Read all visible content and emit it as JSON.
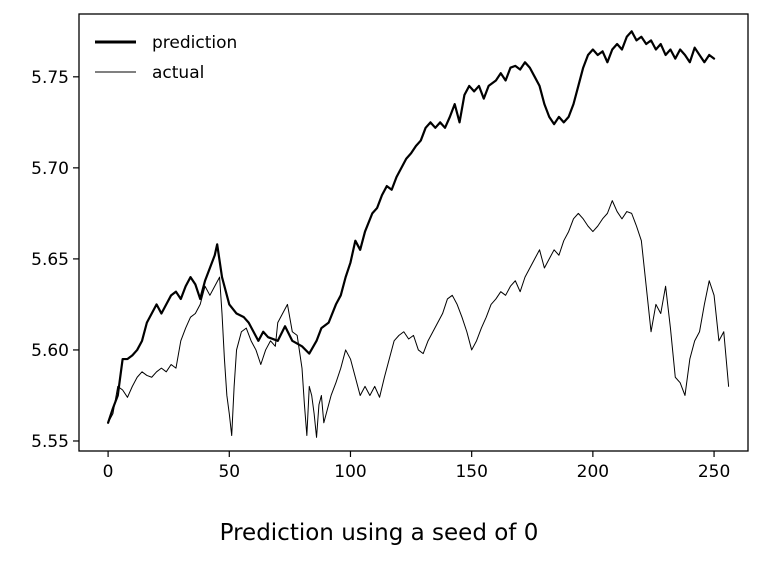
{
  "caption": "Prediction using a seed of 0",
  "chart_data": {
    "type": "line",
    "title": "",
    "xlabel": "",
    "ylabel": "",
    "xlim": [
      -12,
      264
    ],
    "ylim": [
      5.5445,
      5.7845
    ],
    "x_ticks": [
      0,
      50,
      100,
      150,
      200,
      250
    ],
    "y_ticks": [
      5.55,
      5.6,
      5.65,
      5.7,
      5.75
    ],
    "y_tick_labels": [
      "5.55",
      "5.60",
      "5.65",
      "5.70",
      "5.75"
    ],
    "grid": false,
    "legend": "top-left",
    "series": [
      {
        "name": "prediction",
        "color": "#000000",
        "line_width": 2.2,
        "points": [
          [
            0,
            5.56
          ],
          [
            2,
            5.568
          ],
          [
            4,
            5.575
          ],
          [
            6,
            5.595
          ],
          [
            8,
            5.595
          ],
          [
            10,
            5.597
          ],
          [
            12,
            5.6
          ],
          [
            14,
            5.605
          ],
          [
            16,
            5.615
          ],
          [
            18,
            5.62
          ],
          [
            20,
            5.625
          ],
          [
            22,
            5.62
          ],
          [
            24,
            5.625
          ],
          [
            26,
            5.63
          ],
          [
            28,
            5.632
          ],
          [
            30,
            5.628
          ],
          [
            32,
            5.635
          ],
          [
            34,
            5.64
          ],
          [
            36,
            5.636
          ],
          [
            38,
            5.628
          ],
          [
            40,
            5.638
          ],
          [
            42,
            5.645
          ],
          [
            44,
            5.652
          ],
          [
            45,
            5.658
          ],
          [
            47,
            5.64
          ],
          [
            50,
            5.625
          ],
          [
            53,
            5.62
          ],
          [
            56,
            5.618
          ],
          [
            58,
            5.615
          ],
          [
            60,
            5.61
          ],
          [
            62,
            5.605
          ],
          [
            64,
            5.61
          ],
          [
            66,
            5.607
          ],
          [
            70,
            5.605
          ],
          [
            73,
            5.613
          ],
          [
            76,
            5.605
          ],
          [
            80,
            5.602
          ],
          [
            83,
            5.598
          ],
          [
            86,
            5.605
          ],
          [
            88,
            5.612
          ],
          [
            91,
            5.615
          ],
          [
            94,
            5.625
          ],
          [
            96,
            5.63
          ],
          [
            98,
            5.64
          ],
          [
            100,
            5.648
          ],
          [
            102,
            5.66
          ],
          [
            104,
            5.655
          ],
          [
            106,
            5.665
          ],
          [
            109,
            5.675
          ],
          [
            111,
            5.678
          ],
          [
            113,
            5.685
          ],
          [
            115,
            5.69
          ],
          [
            117,
            5.688
          ],
          [
            119,
            5.695
          ],
          [
            121,
            5.7
          ],
          [
            123,
            5.705
          ],
          [
            125,
            5.708
          ],
          [
            127,
            5.712
          ],
          [
            129,
            5.715
          ],
          [
            131,
            5.722
          ],
          [
            133,
            5.725
          ],
          [
            135,
            5.722
          ],
          [
            137,
            5.725
          ],
          [
            139,
            5.722
          ],
          [
            141,
            5.728
          ],
          [
            143,
            5.735
          ],
          [
            145,
            5.725
          ],
          [
            147,
            5.74
          ],
          [
            149,
            5.745
          ],
          [
            151,
            5.742
          ],
          [
            153,
            5.745
          ],
          [
            155,
            5.738
          ],
          [
            157,
            5.745
          ],
          [
            160,
            5.748
          ],
          [
            162,
            5.752
          ],
          [
            164,
            5.748
          ],
          [
            166,
            5.755
          ],
          [
            168,
            5.756
          ],
          [
            170,
            5.754
          ],
          [
            172,
            5.758
          ],
          [
            174,
            5.755
          ],
          [
            176,
            5.75
          ],
          [
            178,
            5.745
          ],
          [
            180,
            5.735
          ],
          [
            182,
            5.728
          ],
          [
            184,
            5.724
          ],
          [
            186,
            5.728
          ],
          [
            188,
            5.725
          ],
          [
            190,
            5.728
          ],
          [
            192,
            5.735
          ],
          [
            194,
            5.745
          ],
          [
            196,
            5.755
          ],
          [
            198,
            5.762
          ],
          [
            200,
            5.765
          ],
          [
            202,
            5.762
          ],
          [
            204,
            5.764
          ],
          [
            206,
            5.758
          ],
          [
            208,
            5.765
          ],
          [
            210,
            5.768
          ],
          [
            212,
            5.765
          ],
          [
            214,
            5.772
          ],
          [
            216,
            5.775
          ],
          [
            218,
            5.77
          ],
          [
            220,
            5.772
          ],
          [
            222,
            5.768
          ],
          [
            224,
            5.77
          ],
          [
            226,
            5.765
          ],
          [
            228,
            5.768
          ],
          [
            230,
            5.762
          ],
          [
            232,
            5.765
          ],
          [
            234,
            5.76
          ],
          [
            236,
            5.765
          ],
          [
            238,
            5.762
          ],
          [
            240,
            5.758
          ],
          [
            242,
            5.766
          ],
          [
            244,
            5.762
          ],
          [
            246,
            5.758
          ],
          [
            248,
            5.762
          ],
          [
            250,
            5.76
          ]
        ]
      },
      {
        "name": "actual",
        "color": "#000000",
        "line_width": 1.0,
        "points": [
          [
            0,
            5.56
          ],
          [
            2,
            5.565
          ],
          [
            4,
            5.58
          ],
          [
            6,
            5.578
          ],
          [
            8,
            5.574
          ],
          [
            10,
            5.58
          ],
          [
            12,
            5.585
          ],
          [
            14,
            5.588
          ],
          [
            16,
            5.586
          ],
          [
            18,
            5.585
          ],
          [
            20,
            5.588
          ],
          [
            22,
            5.59
          ],
          [
            24,
            5.588
          ],
          [
            26,
            5.592
          ],
          [
            28,
            5.59
          ],
          [
            30,
            5.605
          ],
          [
            32,
            5.612
          ],
          [
            34,
            5.618
          ],
          [
            36,
            5.62
          ],
          [
            38,
            5.625
          ],
          [
            40,
            5.635
          ],
          [
            42,
            5.63
          ],
          [
            44,
            5.635
          ],
          [
            46,
            5.64
          ],
          [
            47,
            5.62
          ],
          [
            48,
            5.595
          ],
          [
            49,
            5.575
          ],
          [
            50,
            5.565
          ],
          [
            51,
            5.553
          ],
          [
            52,
            5.58
          ],
          [
            53,
            5.6
          ],
          [
            55,
            5.61
          ],
          [
            57,
            5.612
          ],
          [
            59,
            5.605
          ],
          [
            61,
            5.6
          ],
          [
            63,
            5.592
          ],
          [
            65,
            5.6
          ],
          [
            67,
            5.605
          ],
          [
            69,
            5.602
          ],
          [
            70,
            5.615
          ],
          [
            72,
            5.62
          ],
          [
            74,
            5.625
          ],
          [
            76,
            5.61
          ],
          [
            78,
            5.608
          ],
          [
            80,
            5.59
          ],
          [
            81,
            5.57
          ],
          [
            82,
            5.553
          ],
          [
            83,
            5.58
          ],
          [
            84,
            5.575
          ],
          [
            85,
            5.565
          ],
          [
            86,
            5.552
          ],
          [
            87,
            5.57
          ],
          [
            88,
            5.575
          ],
          [
            89,
            5.56
          ],
          [
            90,
            5.565
          ],
          [
            92,
            5.575
          ],
          [
            94,
            5.582
          ],
          [
            96,
            5.59
          ],
          [
            98,
            5.6
          ],
          [
            100,
            5.595
          ],
          [
            102,
            5.585
          ],
          [
            104,
            5.575
          ],
          [
            106,
            5.58
          ],
          [
            108,
            5.575
          ],
          [
            110,
            5.58
          ],
          [
            112,
            5.574
          ],
          [
            114,
            5.585
          ],
          [
            116,
            5.595
          ],
          [
            118,
            5.605
          ],
          [
            120,
            5.608
          ],
          [
            122,
            5.61
          ],
          [
            124,
            5.606
          ],
          [
            126,
            5.608
          ],
          [
            128,
            5.6
          ],
          [
            130,
            5.598
          ],
          [
            132,
            5.605
          ],
          [
            134,
            5.61
          ],
          [
            136,
            5.615
          ],
          [
            138,
            5.62
          ],
          [
            140,
            5.628
          ],
          [
            142,
            5.63
          ],
          [
            144,
            5.625
          ],
          [
            146,
            5.618
          ],
          [
            148,
            5.61
          ],
          [
            150,
            5.6
          ],
          [
            152,
            5.605
          ],
          [
            154,
            5.612
          ],
          [
            156,
            5.618
          ],
          [
            158,
            5.625
          ],
          [
            160,
            5.628
          ],
          [
            162,
            5.632
          ],
          [
            164,
            5.63
          ],
          [
            166,
            5.635
          ],
          [
            168,
            5.638
          ],
          [
            170,
            5.632
          ],
          [
            172,
            5.64
          ],
          [
            174,
            5.645
          ],
          [
            176,
            5.65
          ],
          [
            178,
            5.655
          ],
          [
            180,
            5.645
          ],
          [
            182,
            5.65
          ],
          [
            184,
            5.655
          ],
          [
            186,
            5.652
          ],
          [
            188,
            5.66
          ],
          [
            190,
            5.665
          ],
          [
            192,
            5.672
          ],
          [
            194,
            5.675
          ],
          [
            196,
            5.672
          ],
          [
            198,
            5.668
          ],
          [
            200,
            5.665
          ],
          [
            202,
            5.668
          ],
          [
            204,
            5.672
          ],
          [
            206,
            5.675
          ],
          [
            208,
            5.682
          ],
          [
            210,
            5.676
          ],
          [
            212,
            5.672
          ],
          [
            214,
            5.676
          ],
          [
            216,
            5.675
          ],
          [
            218,
            5.668
          ],
          [
            220,
            5.66
          ],
          [
            222,
            5.635
          ],
          [
            224,
            5.61
          ],
          [
            226,
            5.625
          ],
          [
            228,
            5.62
          ],
          [
            230,
            5.635
          ],
          [
            232,
            5.612
          ],
          [
            234,
            5.585
          ],
          [
            236,
            5.582
          ],
          [
            238,
            5.575
          ],
          [
            240,
            5.595
          ],
          [
            242,
            5.605
          ],
          [
            244,
            5.61
          ],
          [
            246,
            5.625
          ],
          [
            248,
            5.638
          ],
          [
            250,
            5.63
          ],
          [
            252,
            5.605
          ],
          [
            254,
            5.61
          ],
          [
            256,
            5.58
          ]
        ]
      }
    ]
  }
}
